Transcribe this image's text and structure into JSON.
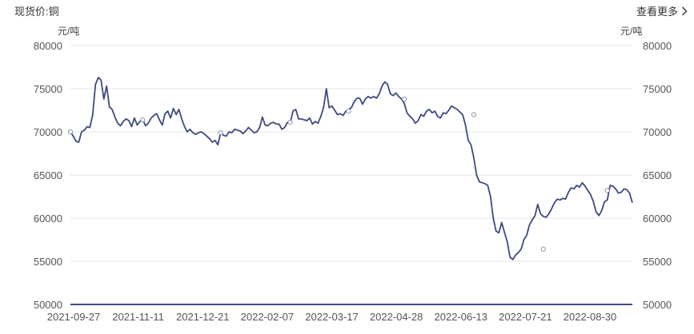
{
  "header": {
    "title": "现货价:铜",
    "more_label": "查看更多"
  },
  "chart_data": {
    "type": "line",
    "title": "现货价:铜",
    "unit": "元/吨",
    "ylim": [
      50000,
      80000
    ],
    "y_ticks": [
      80000,
      75000,
      70000,
      65000,
      60000,
      55000,
      50000
    ],
    "x_ticks": [
      "2021-09-27",
      "2021-11-11",
      "2021-12-21",
      "2022-02-07",
      "2022-03-17",
      "2022-04-28",
      "2022-06-13",
      "2022-07-21",
      "2022-08-30"
    ],
    "line_color": "#3d4a80",
    "grid": true,
    "series": [
      {
        "values": [
          70000,
          69500,
          68900,
          68800,
          70000,
          70200,
          70600,
          70500,
          72000,
          75500,
          76300,
          76000,
          73800,
          75300,
          72900,
          72600,
          71700,
          71000,
          70700,
          71200,
          71500,
          71300,
          70600,
          71600,
          70800,
          71200,
          71400,
          70700,
          71000,
          71600,
          71900,
          72100,
          71400,
          70800,
          72100,
          72400,
          71600,
          72700,
          72000,
          72600,
          71500,
          70600,
          70000,
          70300,
          69900,
          69700,
          69900,
          70000,
          69800,
          69500,
          69200,
          68800,
          69000,
          68500,
          69900,
          69600,
          69500,
          70000,
          69900,
          70300,
          70200,
          70100,
          69800,
          70100,
          70500,
          70200,
          69900,
          70000,
          70500,
          71700,
          70800,
          70700,
          71000,
          71100,
          70900,
          70900,
          70300,
          70500,
          71100,
          71000,
          72400,
          72600,
          71500,
          71500,
          71400,
          71300,
          71600,
          70900,
          71200,
          71000,
          71800,
          72800,
          75000,
          72800,
          73000,
          72500,
          72000,
          72100,
          71900,
          72400,
          72600,
          72800,
          73500,
          73900,
          73900,
          73200,
          73800,
          74100,
          73900,
          74100,
          73900,
          74400,
          75300,
          75800,
          75500,
          74400,
          74200,
          74500,
          74100,
          73800,
          73300,
          72200,
          71800,
          71500,
          71000,
          71300,
          72000,
          71800,
          72400,
          72600,
          72200,
          72400,
          71800,
          71600,
          72200,
          72100,
          72500,
          73000,
          72800,
          72600,
          72300,
          72000,
          70800,
          69000,
          68500,
          67000,
          65000,
          64200,
          64100,
          64000,
          63800,
          62500,
          60000,
          58500,
          58300,
          59500,
          58400,
          57300,
          55500,
          55200,
          55700,
          56000,
          56400,
          57500,
          58000,
          59200,
          59800,
          60300,
          61600,
          60500,
          60200,
          60100,
          60500,
          61100,
          61800,
          62200,
          62100,
          62300,
          62200,
          63000,
          63500,
          63400,
          63800,
          63600,
          64100,
          63700,
          63200,
          62700,
          61900,
          60700,
          60300,
          60900,
          61900,
          62100,
          63800,
          63700,
          63400,
          62900,
          63000,
          63400,
          63300,
          62900,
          61800
        ]
      }
    ],
    "markers": [
      {
        "x_index": 0,
        "y": 70000
      },
      {
        "x_index": 26,
        "y": 71400
      },
      {
        "x_index": 54,
        "y": 69900
      },
      {
        "x_index": 79,
        "y": 71100
      },
      {
        "x_index": 100,
        "y": 72400
      },
      {
        "x_index": 120,
        "y": 73800
      },
      {
        "x_index": 145,
        "y": 72000
      },
      {
        "x_index": 170,
        "y": 56400
      },
      {
        "x_index": 193,
        "y": 63200
      }
    ]
  }
}
